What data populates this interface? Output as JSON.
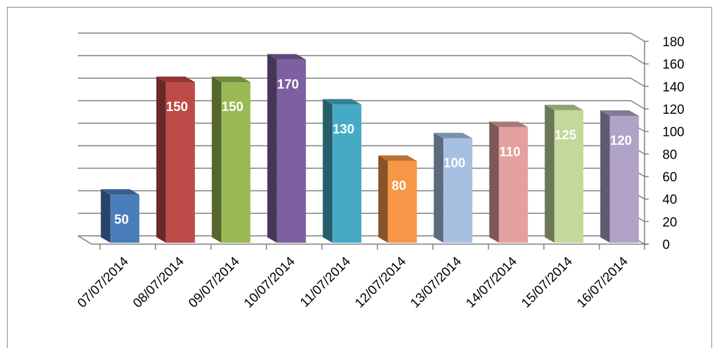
{
  "chart_data": {
    "type": "bar",
    "categories": [
      "07/07/2014",
      "08/07/2014",
      "09/07/2014",
      "10/07/2014",
      "11/07/2014",
      "12/07/2014",
      "13/07/2014",
      "14/07/2014",
      "15/07/2014",
      "16/07/2014"
    ],
    "values": [
      50,
      150,
      150,
      170,
      130,
      80,
      100,
      110,
      125,
      120
    ],
    "colors": [
      "#4a7ebb",
      "#be4b48",
      "#98b954",
      "#7d60a0",
      "#46aac5",
      "#f79646",
      "#a7c0e2",
      "#e4a09e",
      "#c3d89b",
      "#b1a2c8"
    ],
    "title": "",
    "xlabel": "",
    "ylabel": "",
    "ylim": [
      0,
      180
    ],
    "yticks": [
      "0",
      "20",
      "40",
      "60",
      "80",
      "100",
      "120",
      "140",
      "160",
      "180"
    ],
    "y_axis_side": "right",
    "grid": true,
    "legend": "none",
    "style": "3d-column"
  }
}
